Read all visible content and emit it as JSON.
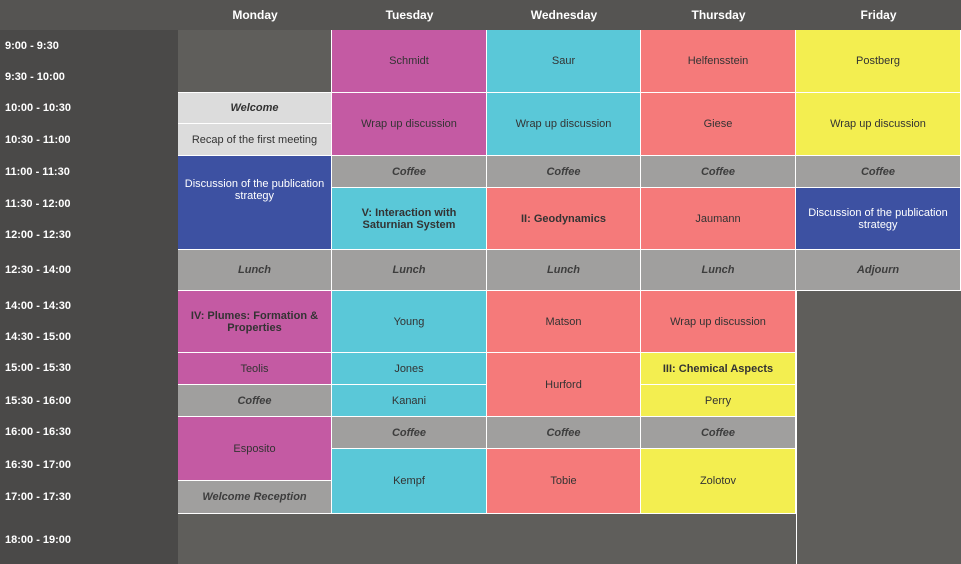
{
  "days": [
    "Monday",
    "Tuesday",
    "Wednesday",
    "Thursday",
    "Friday"
  ],
  "times": [
    "9:00 -  9:30",
    "9:30 - 10:00",
    "10:00 - 10:30",
    "10:30 - 11:00",
    "11:00 - 11:30",
    "11:30 - 12:00",
    "12:00 - 12:30",
    "12:30 - 14:00",
    "14:00 - 14:30",
    "14:30 - 15:00",
    "15:00 - 15:30",
    "15:30 - 16:00",
    "16:00 - 16:30",
    "16:30 - 17:00",
    "17:00 - 17:30",
    "18:00 - 19:00"
  ],
  "monday": {
    "welcome": "Welcome",
    "recap": "Recap of the first meeting",
    "publication": "Discussion of the publication strategy",
    "lunch": "Lunch",
    "plumes": "IV: Plumes: Formation & Properties",
    "teolis": "Teolis",
    "coffee": "Coffee",
    "esposito": "Esposito",
    "reception": "Welcome Reception"
  },
  "tuesday": {
    "schmidt": "Schmidt",
    "wrapup": "Wrap up discussion",
    "coffee1": "Coffee",
    "saturnian": "V: Interaction with Saturnian System",
    "lunch": "Lunch",
    "young": "Young",
    "jones": "Jones",
    "kanani": "Kanani",
    "coffee2": "Coffee",
    "kempf": "Kempf"
  },
  "wednesday": {
    "saur": "Saur",
    "wrapup": "Wrap up discussion",
    "coffee1": "Coffee",
    "geodynamics": "II: Geodynamics",
    "lunch": "Lunch",
    "matson": "Matson",
    "hurford": "Hurford",
    "coffee2": "Coffee",
    "tobie": "Tobie"
  },
  "thursday": {
    "helfensstein": "Helfensstein",
    "giese": "Giese",
    "coffee1": "Coffee",
    "jaumann": "Jaumann",
    "lunch": "Lunch",
    "wrapup": "Wrap up discussion",
    "chemical": "III: Chemical Aspects",
    "perry": "Perry",
    "coffee2": "Coffee",
    "zolotov": "Zolotov"
  },
  "friday": {
    "postberg": "Postberg",
    "wrapup": "Wrap up discussion",
    "coffee": "Coffee",
    "publication": "Discussion of the publication strategy",
    "adjourn": "Adjourn"
  },
  "colors": {
    "magenta": "#c45aa3",
    "cyan": "#5ac8d8",
    "salmon": "#f57a7a",
    "yellow": "#f3ee50",
    "gray": "#a09f9e",
    "blue": "#3d51a2"
  }
}
